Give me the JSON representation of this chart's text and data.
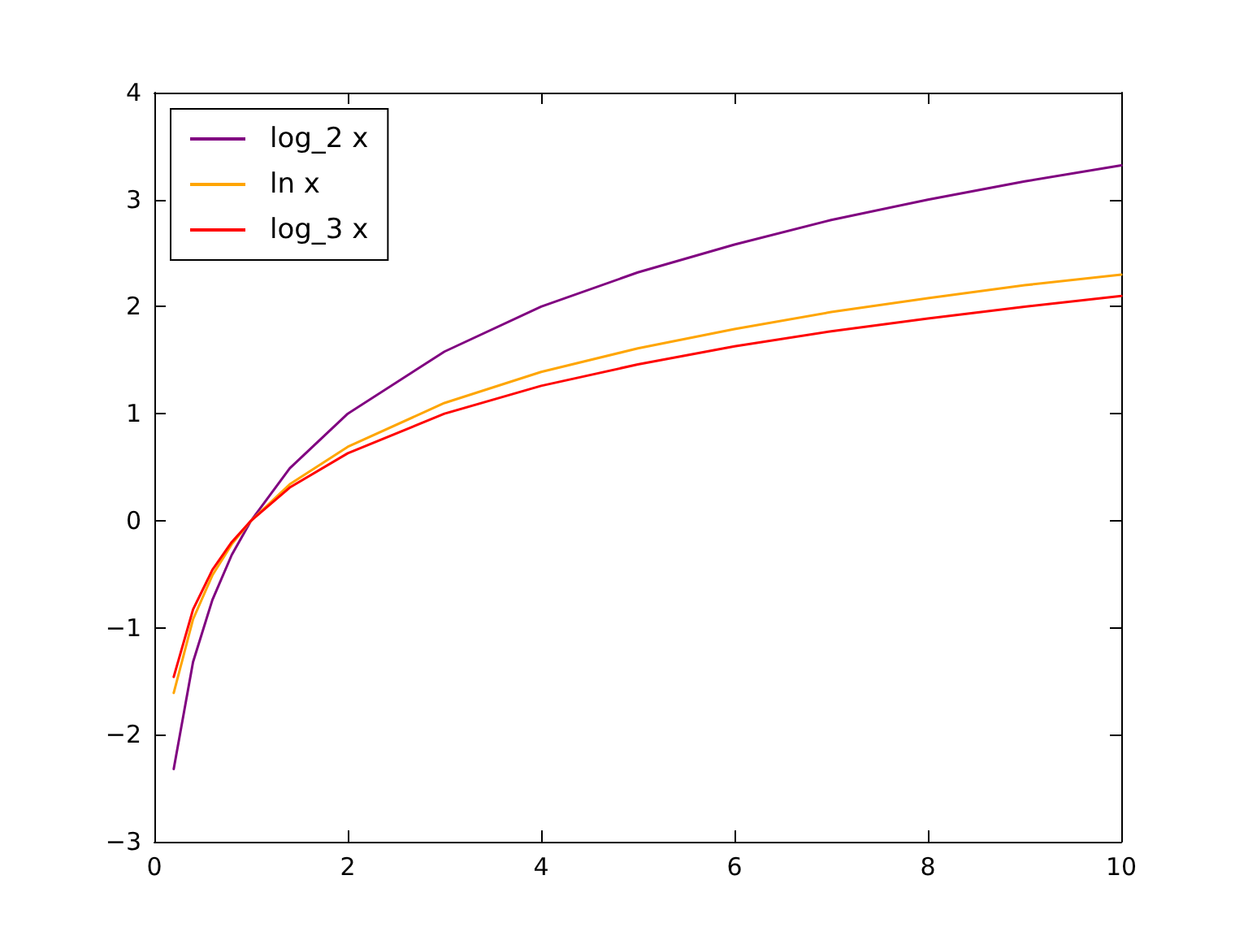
{
  "chart_data": {
    "type": "line",
    "legend": "top left",
    "grid": false,
    "marker": "none",
    "line_style": "solid",
    "xlim": [
      0,
      10
    ],
    "xticks": [
      0,
      2,
      4,
      6,
      8,
      10
    ],
    "ylim": [
      -3,
      4
    ],
    "yticks": [
      -3,
      -2,
      -1,
      0,
      1,
      2,
      3,
      4
    ],
    "x": [
      0.2,
      0.4,
      0.6,
      0.8,
      1,
      1.4,
      2,
      3,
      4,
      5,
      6,
      7,
      8,
      9,
      10
    ],
    "series": [
      {
        "name": "log_2 x",
        "color": "#800080",
        "values": [
          -2.32,
          -1.32,
          -0.74,
          -0.32,
          0,
          0.49,
          1,
          1.58,
          2,
          2.32,
          2.58,
          2.81,
          3,
          3.17,
          3.32
        ]
      },
      {
        "name": "ln x",
        "color": "#ffa500",
        "values": [
          -1.61,
          -0.92,
          -0.51,
          -0.22,
          0,
          0.34,
          0.69,
          1.1,
          1.39,
          1.61,
          1.79,
          1.95,
          2.08,
          2.2,
          2.3
        ]
      },
      {
        "name": "log_3 x",
        "color": "#ff0000",
        "values": [
          -1.46,
          -0.83,
          -0.46,
          -0.2,
          0,
          0.31,
          0.63,
          1,
          1.26,
          1.46,
          1.63,
          1.77,
          1.89,
          2,
          2.1
        ]
      }
    ]
  }
}
